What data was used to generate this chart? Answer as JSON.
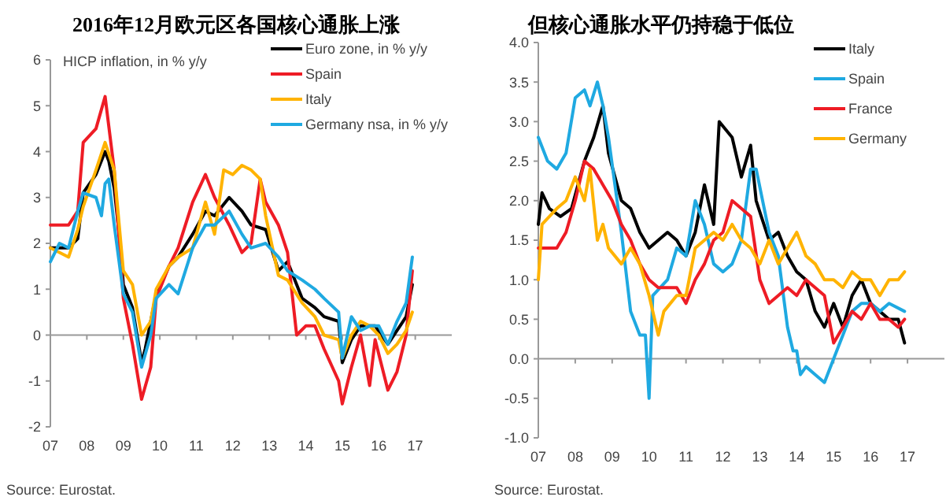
{
  "chart_data": [
    {
      "type": "line",
      "title": "2016年12月欧元区各国核心通胀上涨",
      "ylabel": "HICP inflation, in % y/y",
      "annotations": [
        "Source: Eurostat."
      ],
      "legend": "top right",
      "marker": "none",
      "line_style": "solid",
      "xlim": [
        2007,
        2018
      ],
      "xticks": [
        {
          "value": 2007,
          "label": "07"
        },
        {
          "value": 2008,
          "label": "08"
        },
        {
          "value": 2009,
          "label": "09"
        },
        {
          "value": 2010,
          "label": "10"
        },
        {
          "value": 2011,
          "label": "11"
        },
        {
          "value": 2012,
          "label": "12"
        },
        {
          "value": 2013,
          "label": "13"
        },
        {
          "value": 2014,
          "label": "14"
        },
        {
          "value": 2015,
          "label": "15"
        },
        {
          "value": 2016,
          "label": "16"
        },
        {
          "value": 2017,
          "label": "17"
        }
      ],
      "ylim": [
        -2,
        6
      ],
      "yticks": [
        -2,
        -1,
        0,
        1,
        2,
        3,
        4,
        5,
        6
      ],
      "series": [
        {
          "name": "Euro zone, in % y/y",
          "color": "#000000",
          "x": [
            2007.0,
            2007.5,
            2007.75,
            2007.9,
            2008.25,
            2008.5,
            2008.6,
            2008.75,
            2008.9,
            2009.0,
            2009.25,
            2009.5,
            2009.6,
            2009.9,
            2010.25,
            2010.5,
            2010.9,
            2011.25,
            2011.5,
            2011.9,
            2012.25,
            2012.5,
            2012.9,
            2013.25,
            2013.5,
            2013.9,
            2014.25,
            2014.5,
            2014.9,
            2015.0,
            2015.25,
            2015.5,
            2015.9,
            2016.25,
            2016.5,
            2016.75,
            2016.92
          ],
          "values": [
            1.9,
            1.9,
            2.1,
            3.1,
            3.5,
            4.0,
            3.8,
            3.2,
            2.1,
            1.1,
            0.6,
            -0.6,
            -0.3,
            0.9,
            1.5,
            1.7,
            2.2,
            2.7,
            2.6,
            3.0,
            2.7,
            2.4,
            2.3,
            1.4,
            1.6,
            0.8,
            0.6,
            0.4,
            0.3,
            -0.6,
            -0.1,
            0.2,
            0.2,
            -0.2,
            0.1,
            0.4,
            1.1
          ]
        },
        {
          "name": "Spain",
          "color": "#ee1c25",
          "x": [
            2007.0,
            2007.5,
            2007.75,
            2007.9,
            2008.25,
            2008.5,
            2008.75,
            2009.0,
            2009.25,
            2009.5,
            2009.75,
            2009.9,
            2010.25,
            2010.5,
            2010.9,
            2011.25,
            2011.5,
            2011.9,
            2012.25,
            2012.5,
            2012.75,
            2012.9,
            2013.25,
            2013.5,
            2013.75,
            2014.0,
            2014.25,
            2014.5,
            2014.9,
            2015.0,
            2015.25,
            2015.5,
            2015.75,
            2015.9,
            2016.25,
            2016.5,
            2016.75,
            2016.92
          ],
          "values": [
            2.4,
            2.4,
            2.7,
            4.2,
            4.5,
            5.2,
            3.6,
            0.8,
            -0.2,
            -1.4,
            -0.7,
            0.8,
            1.5,
            1.9,
            2.9,
            3.5,
            3.0,
            2.4,
            1.8,
            2.0,
            3.4,
            2.9,
            2.4,
            1.8,
            0.0,
            0.2,
            0.2,
            -0.3,
            -1.0,
            -1.5,
            -0.7,
            0.0,
            -1.1,
            -0.1,
            -1.2,
            -0.8,
            0.0,
            1.4
          ]
        },
        {
          "name": "Italy",
          "color": "#ffb300",
          "x": [
            2007.0,
            2007.5,
            2007.75,
            2007.9,
            2008.25,
            2008.5,
            2008.75,
            2009.0,
            2009.25,
            2009.5,
            2009.75,
            2009.9,
            2010.25,
            2010.5,
            2010.9,
            2011.25,
            2011.5,
            2011.75,
            2012.0,
            2012.25,
            2012.5,
            2012.75,
            2012.9,
            2013.25,
            2013.5,
            2013.9,
            2014.25,
            2014.5,
            2014.9,
            2015.0,
            2015.25,
            2015.5,
            2015.75,
            2016.0,
            2016.25,
            2016.5,
            2016.75,
            2016.92
          ],
          "values": [
            1.9,
            1.7,
            2.3,
            2.8,
            3.6,
            4.2,
            3.6,
            1.4,
            1.1,
            0.0,
            0.3,
            1.0,
            1.5,
            1.7,
            1.9,
            2.9,
            2.2,
            3.6,
            3.5,
            3.7,
            3.6,
            3.4,
            2.6,
            1.3,
            1.2,
            0.7,
            0.4,
            0.0,
            -0.1,
            -0.5,
            0.0,
            0.3,
            0.2,
            0.0,
            -0.4,
            -0.2,
            0.1,
            0.5
          ]
        },
        {
          "name": "Germany nsa, in % y/y",
          "color": "#1fa9e1",
          "x": [
            2007.0,
            2007.25,
            2007.5,
            2007.75,
            2007.9,
            2008.25,
            2008.4,
            2008.5,
            2008.6,
            2008.75,
            2009.0,
            2009.25,
            2009.5,
            2009.75,
            2009.9,
            2010.25,
            2010.5,
            2010.9,
            2011.25,
            2011.5,
            2011.9,
            2012.25,
            2012.5,
            2012.9,
            2013.25,
            2013.5,
            2013.9,
            2014.25,
            2014.5,
            2014.9,
            2015.0,
            2015.25,
            2015.5,
            2015.75,
            2016.0,
            2016.25,
            2016.5,
            2016.75,
            2016.92
          ],
          "values": [
            1.6,
            2.0,
            1.9,
            2.7,
            3.1,
            3.0,
            2.6,
            3.3,
            3.4,
            2.4,
            0.9,
            0.5,
            -0.7,
            0.0,
            0.8,
            1.1,
            0.9,
            1.9,
            2.4,
            2.4,
            2.7,
            2.2,
            1.9,
            2.0,
            1.7,
            1.4,
            1.2,
            1.0,
            0.8,
            0.5,
            -0.5,
            0.4,
            0.1,
            0.2,
            0.2,
            -0.2,
            0.3,
            0.7,
            1.7
          ]
        }
      ]
    },
    {
      "type": "line",
      "title": "但核心通胀水平仍持稳于低位",
      "annotations": [
        "Source: Eurostat."
      ],
      "legend": "top right",
      "marker": "none",
      "line_style": "solid",
      "xlim": [
        2007,
        2018
      ],
      "xticks": [
        {
          "value": 2007,
          "label": "07"
        },
        {
          "value": 2008,
          "label": "08"
        },
        {
          "value": 2009,
          "label": "09"
        },
        {
          "value": 2010,
          "label": "10"
        },
        {
          "value": 2011,
          "label": "11"
        },
        {
          "value": 2012,
          "label": "12"
        },
        {
          "value": 2013,
          "label": "13"
        },
        {
          "value": 2014,
          "label": "14"
        },
        {
          "value": 2015,
          "label": "15"
        },
        {
          "value": 2016,
          "label": "16"
        },
        {
          "value": 2017,
          "label": "17"
        }
      ],
      "ylim": [
        -1,
        4
      ],
      "yticks": [
        {
          "value": -1,
          "label": "-1.0"
        },
        {
          "value": -0.5,
          "label": "-0.5"
        },
        {
          "value": 0,
          "label": "0.0"
        },
        {
          "value": 0.5,
          "label": "0.5"
        },
        {
          "value": 1,
          "label": "1.0"
        },
        {
          "value": 1.5,
          "label": "1.5"
        },
        {
          "value": 2,
          "label": "2.0"
        },
        {
          "value": 2.5,
          "label": "2.5"
        },
        {
          "value": 3,
          "label": "3.0"
        },
        {
          "value": 3.5,
          "label": "3.5"
        },
        {
          "value": 4,
          "label": "4.0"
        }
      ],
      "series": [
        {
          "name": "Italy",
          "color": "#000000",
          "x": [
            2007.0,
            2007.1,
            2007.3,
            2007.6,
            2007.9,
            2008.25,
            2008.5,
            2008.75,
            2008.9,
            2009.25,
            2009.5,
            2009.75,
            2010.0,
            2010.25,
            2010.5,
            2010.75,
            2011.0,
            2011.25,
            2011.5,
            2011.75,
            2011.9,
            2012.25,
            2012.5,
            2012.75,
            2012.9,
            2013.25,
            2013.5,
            2013.75,
            2014.0,
            2014.25,
            2014.5,
            2014.75,
            2015.0,
            2015.25,
            2015.5,
            2015.75,
            2016.0,
            2016.25,
            2016.5,
            2016.75,
            2016.92
          ],
          "values": [
            1.7,
            2.1,
            1.9,
            1.8,
            1.9,
            2.5,
            2.8,
            3.2,
            2.6,
            2.0,
            1.9,
            1.6,
            1.4,
            1.5,
            1.6,
            1.5,
            1.3,
            1.6,
            2.2,
            1.7,
            3.0,
            2.8,
            2.3,
            2.7,
            2.0,
            1.5,
            1.6,
            1.3,
            1.1,
            1.0,
            0.6,
            0.4,
            0.7,
            0.4,
            0.8,
            1.0,
            0.7,
            0.6,
            0.5,
            0.5,
            0.2
          ]
        },
        {
          "name": "Spain",
          "color": "#1fa9e1",
          "x": [
            2007.0,
            2007.25,
            2007.5,
            2007.75,
            2008.0,
            2008.25,
            2008.4,
            2008.6,
            2008.75,
            2008.9,
            2009.25,
            2009.5,
            2009.75,
            2009.9,
            2010.0,
            2010.1,
            2010.5,
            2010.75,
            2011.0,
            2011.25,
            2011.5,
            2011.75,
            2012.0,
            2012.25,
            2012.5,
            2012.75,
            2012.9,
            2013.25,
            2013.5,
            2013.75,
            2013.9,
            2014.0,
            2014.1,
            2014.25,
            2014.5,
            2014.75,
            2015.0,
            2015.25,
            2015.5,
            2015.75,
            2016.0,
            2016.25,
            2016.5,
            2016.92
          ],
          "values": [
            2.8,
            2.5,
            2.4,
            2.6,
            3.3,
            3.4,
            3.2,
            3.5,
            3.2,
            2.8,
            1.6,
            0.6,
            0.3,
            0.3,
            -0.5,
            0.8,
            1.0,
            1.4,
            1.3,
            2.0,
            1.7,
            1.2,
            1.1,
            1.2,
            1.5,
            2.4,
            2.4,
            1.6,
            1.3,
            0.4,
            0.1,
            0.1,
            -0.2,
            -0.1,
            -0.2,
            -0.3,
            0.0,
            0.3,
            0.6,
            0.7,
            0.7,
            0.6,
            0.7,
            0.6
          ]
        },
        {
          "name": "France",
          "color": "#ee1c25",
          "x": [
            2007.0,
            2007.25,
            2007.5,
            2007.75,
            2008.0,
            2008.25,
            2008.5,
            2008.75,
            2009.0,
            2009.25,
            2009.5,
            2009.75,
            2010.0,
            2010.25,
            2010.5,
            2010.75,
            2011.0,
            2011.25,
            2011.5,
            2011.75,
            2012.0,
            2012.25,
            2012.5,
            2012.75,
            2013.0,
            2013.25,
            2013.5,
            2013.75,
            2014.0,
            2014.25,
            2014.5,
            2014.75,
            2015.0,
            2015.25,
            2015.5,
            2015.75,
            2016.0,
            2016.25,
            2016.5,
            2016.75,
            2016.92
          ],
          "values": [
            1.4,
            1.4,
            1.4,
            1.6,
            2.0,
            2.5,
            2.4,
            2.2,
            2.0,
            1.7,
            1.5,
            1.2,
            1.0,
            0.9,
            0.9,
            0.9,
            0.7,
            1.0,
            1.2,
            1.5,
            1.6,
            2.0,
            1.9,
            1.8,
            1.0,
            0.7,
            0.8,
            0.9,
            0.8,
            1.0,
            0.9,
            0.8,
            0.2,
            0.4,
            0.6,
            0.5,
            0.7,
            0.5,
            0.5,
            0.4,
            0.5
          ]
        },
        {
          "name": "Germany",
          "color": "#ffb300",
          "x": [
            2007.0,
            2007.1,
            2007.5,
            2007.75,
            2008.0,
            2008.25,
            2008.4,
            2008.6,
            2008.75,
            2008.9,
            2009.25,
            2009.5,
            2009.75,
            2010.0,
            2010.25,
            2010.4,
            2010.75,
            2011.0,
            2011.25,
            2011.5,
            2011.75,
            2012.0,
            2012.25,
            2012.5,
            2012.75,
            2013.0,
            2013.25,
            2013.5,
            2013.75,
            2014.0,
            2014.25,
            2014.5,
            2014.75,
            2015.0,
            2015.25,
            2015.5,
            2015.75,
            2016.0,
            2016.25,
            2016.5,
            2016.75,
            2016.92
          ],
          "values": [
            1.0,
            1.7,
            1.9,
            2.0,
            2.3,
            2.0,
            2.4,
            1.5,
            1.7,
            1.4,
            1.2,
            1.4,
            1.2,
            0.8,
            0.3,
            0.6,
            0.8,
            0.8,
            1.4,
            1.5,
            1.6,
            1.5,
            1.7,
            1.5,
            1.4,
            1.2,
            1.5,
            1.2,
            1.4,
            1.6,
            1.3,
            1.2,
            1.0,
            1.0,
            0.9,
            1.1,
            1.0,
            1.0,
            0.8,
            1.0,
            1.0,
            1.1
          ]
        }
      ]
    }
  ]
}
